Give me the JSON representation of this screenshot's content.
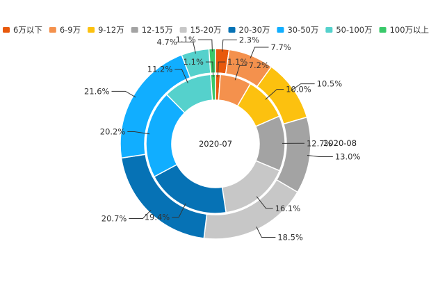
{
  "chart_data": {
    "type": "pie",
    "subtype": "nested-donut",
    "legend_position": "top",
    "categories": [
      "6万以下",
      "6-9万",
      "9-12万",
      "12-15万",
      "15-20万",
      "20-30万",
      "30-50万",
      "50-100万",
      "100万以上"
    ],
    "colors": [
      "#e8590c",
      "#f4914d",
      "#fcc10f",
      "#a3a3a3",
      "#c7c7c7",
      "#0672b5",
      "#11aeff",
      "#55d1cc",
      "#39c96a"
    ],
    "series": [
      {
        "name": "2020-07",
        "ring": "inner",
        "values": [
          1.1,
          7.2,
          10.0,
          12.7,
          16.1,
          19.4,
          20.2,
          11.2,
          1.1
        ],
        "labels": [
          "1.1%",
          "7.2%",
          "10.0%",
          "12.7%",
          "16.1%",
          "19.4%",
          "20.2%",
          "11.2%",
          "1.1%"
        ]
      },
      {
        "name": "2020-08",
        "ring": "outer",
        "values": [
          2.3,
          7.7,
          10.5,
          13.0,
          18.5,
          20.7,
          21.6,
          4.7,
          1.1
        ],
        "labels": [
          "2.3%",
          "7.7%",
          "10.5%",
          "13.0%",
          "18.5%",
          "20.7%",
          "21.6%",
          "4.7%",
          "1.1%"
        ]
      }
    ]
  }
}
